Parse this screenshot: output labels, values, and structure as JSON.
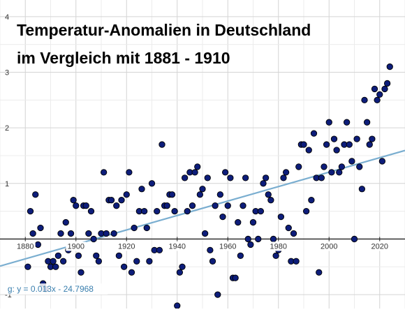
{
  "chart_data": {
    "type": "scatter",
    "title_lines": [
      "Temperatur-Anomalien in Deutschland",
      "im Vergleich mit 1881 - 1910"
    ],
    "xlabel": "",
    "ylabel": "",
    "xlim": [
      1870,
      2030
    ],
    "ylim": [
      -1.25,
      4.3
    ],
    "x_ticks": [
      "1880",
      "1900",
      "1920",
      "1940",
      "1960",
      "1980",
      "2000",
      "2020"
    ],
    "y_ticks": [
      "-1",
      "1",
      "2",
      "3",
      "4"
    ],
    "grid": true,
    "point_color": "#0d1d7a",
    "point_edge_color": "#000000",
    "trend_color": "#7aaed0",
    "trendline": {
      "label": "g: y = 0.013x - 24.7968",
      "slope": 0.013,
      "intercept": -24.7968
    },
    "points": [
      [
        1881,
        -0.5
      ],
      [
        1882,
        0.5
      ],
      [
        1883,
        0.1
      ],
      [
        1884,
        0.8
      ],
      [
        1885,
        -0.1
      ],
      [
        1886,
        0.2
      ],
      [
        1887,
        -0.8
      ],
      [
        1888,
        -0.9
      ],
      [
        1889,
        -0.4
      ],
      [
        1890,
        -0.5
      ],
      [
        1891,
        -0.4
      ],
      [
        1892,
        -0.5
      ],
      [
        1893,
        -0.3
      ],
      [
        1894,
        0.1
      ],
      [
        1895,
        -0.4
      ],
      [
        1896,
        0.3
      ],
      [
        1897,
        -0.2
      ],
      [
        1898,
        0.1
      ],
      [
        1899,
        0.7
      ],
      [
        1900,
        0.6
      ],
      [
        1901,
        -0.3
      ],
      [
        1902,
        -0.6
      ],
      [
        1903,
        0.6
      ],
      [
        1904,
        0.6
      ],
      [
        1905,
        0.1
      ],
      [
        1906,
        0.5
      ],
      [
        1907,
        0.0
      ],
      [
        1908,
        -0.3
      ],
      [
        1909,
        -0.4
      ],
      [
        1910,
        0.1
      ],
      [
        1911,
        1.2
      ],
      [
        1912,
        0.1
      ],
      [
        1913,
        0.7
      ],
      [
        1914,
        0.7
      ],
      [
        1915,
        0.1
      ],
      [
        1916,
        0.6
      ],
      [
        1917,
        -0.3
      ],
      [
        1918,
        0.7
      ],
      [
        1919,
        -0.5
      ],
      [
        1920,
        0.8
      ],
      [
        1921,
        1.2
      ],
      [
        1922,
        -0.6
      ],
      [
        1923,
        0.2
      ],
      [
        1924,
        -0.4
      ],
      [
        1925,
        0.5
      ],
      [
        1926,
        0.9
      ],
      [
        1927,
        0.5
      ],
      [
        1928,
        0.2
      ],
      [
        1929,
        -0.4
      ],
      [
        1930,
        1.0
      ],
      [
        1931,
        -0.2
      ],
      [
        1932,
        0.5
      ],
      [
        1933,
        -0.2
      ],
      [
        1934,
        1.7
      ],
      [
        1935,
        0.6
      ],
      [
        1936,
        0.6
      ],
      [
        1937,
        0.8
      ],
      [
        1938,
        0.8
      ],
      [
        1939,
        0.5
      ],
      [
        1940,
        -1.2
      ],
      [
        1941,
        -0.6
      ],
      [
        1942,
        -0.5
      ],
      [
        1943,
        1.1
      ],
      [
        1944,
        0.5
      ],
      [
        1945,
        1.2
      ],
      [
        1946,
        0.6
      ],
      [
        1947,
        1.2
      ],
      [
        1948,
        1.3
      ],
      [
        1949,
        0.8
      ],
      [
        1950,
        0.9
      ],
      [
        1951,
        0.1
      ],
      [
        1952,
        1.1
      ],
      [
        1953,
        -0.2
      ],
      [
        1954,
        -0.4
      ],
      [
        1955,
        0.6
      ],
      [
        1956,
        -1.0
      ],
      [
        1957,
        0.8
      ],
      [
        1958,
        0.4
      ],
      [
        1959,
        1.2
      ],
      [
        1960,
        0.6
      ],
      [
        1961,
        1.1
      ],
      [
        1962,
        -0.7
      ],
      [
        1963,
        -0.7
      ],
      [
        1964,
        0.3
      ],
      [
        1965,
        -0.3
      ],
      [
        1966,
        0.6
      ],
      [
        1967,
        1.1
      ],
      [
        1968,
        0.0
      ],
      [
        1969,
        -0.1
      ],
      [
        1970,
        0.3
      ],
      [
        1971,
        0.5
      ],
      [
        1972,
        0.0
      ],
      [
        1973,
        0.5
      ],
      [
        1974,
        1.0
      ],
      [
        1975,
        1.1
      ],
      [
        1976,
        0.8
      ],
      [
        1977,
        0.7
      ],
      [
        1978,
        0.0
      ],
      [
        1979,
        -0.3
      ],
      [
        1980,
        -0.2
      ],
      [
        1981,
        0.4
      ],
      [
        1982,
        1.1
      ],
      [
        1983,
        1.2
      ],
      [
        1984,
        0.2
      ],
      [
        1985,
        -0.4
      ],
      [
        1986,
        0.1
      ],
      [
        1987,
        -0.4
      ],
      [
        1988,
        1.3
      ],
      [
        1989,
        1.7
      ],
      [
        1990,
        1.7
      ],
      [
        1991,
        0.5
      ],
      [
        1992,
        1.6
      ],
      [
        1993,
        0.7
      ],
      [
        1994,
        1.9
      ],
      [
        1995,
        1.1
      ],
      [
        1996,
        -0.6
      ],
      [
        1997,
        1.1
      ],
      [
        1998,
        1.3
      ],
      [
        1999,
        1.7
      ],
      [
        2000,
        2.1
      ],
      [
        2001,
        1.2
      ],
      [
        2002,
        1.8
      ],
      [
        2003,
        1.6
      ],
      [
        2004,
        1.2
      ],
      [
        2005,
        1.3
      ],
      [
        2006,
        1.7
      ],
      [
        2007,
        2.1
      ],
      [
        2008,
        1.7
      ],
      [
        2009,
        1.4
      ],
      [
        2010,
        0.0
      ],
      [
        2011,
        1.8
      ],
      [
        2012,
        1.3
      ],
      [
        2013,
        0.9
      ],
      [
        2014,
        2.5
      ],
      [
        2015,
        2.1
      ],
      [
        2016,
        1.7
      ],
      [
        2017,
        1.8
      ],
      [
        2018,
        2.7
      ],
      [
        2019,
        2.5
      ],
      [
        2020,
        2.6
      ],
      [
        2021,
        1.4
      ],
      [
        2022,
        2.7
      ],
      [
        2023,
        2.8
      ],
      [
        2024,
        3.1
      ]
    ]
  }
}
